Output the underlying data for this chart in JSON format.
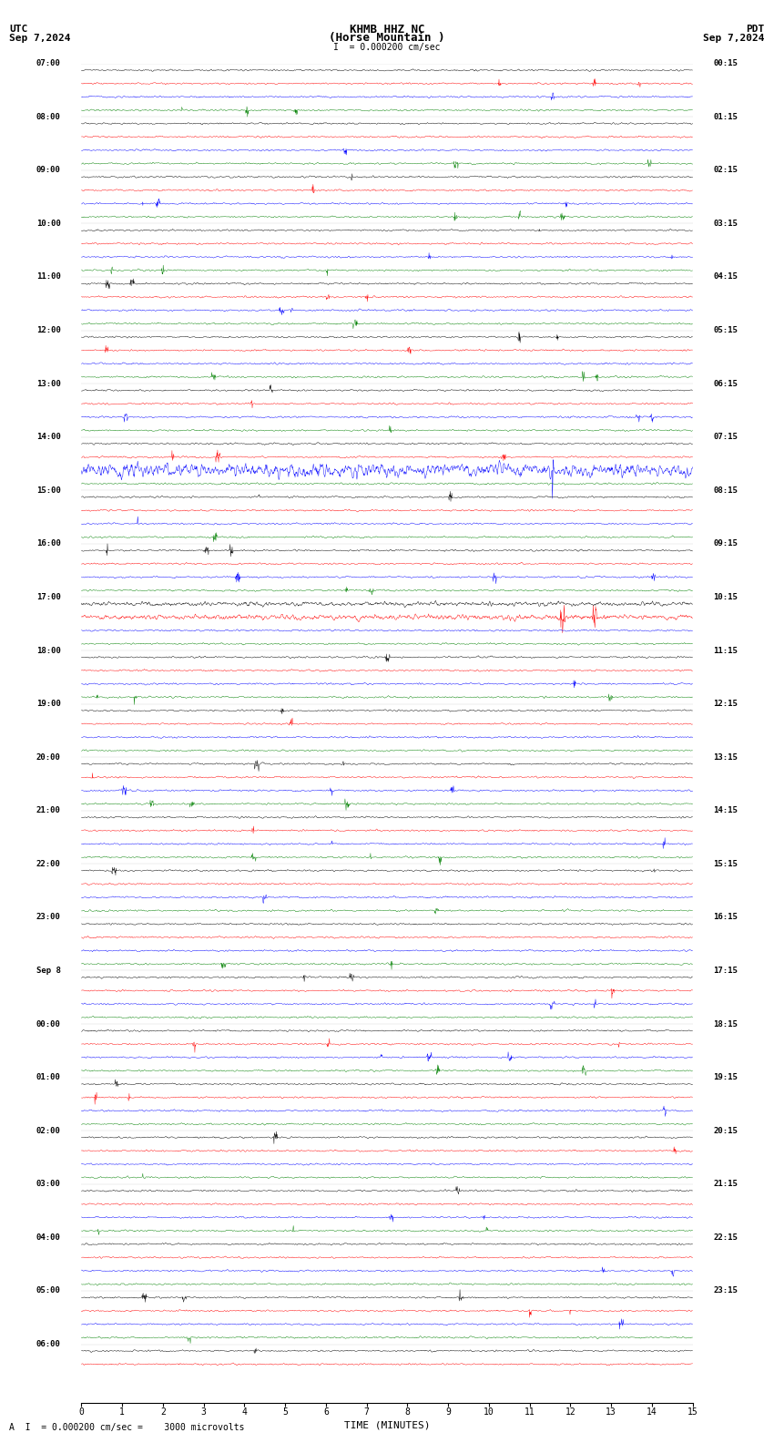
{
  "title_line1": "KHMB HHZ NC",
  "title_line2": "(Horse Mountain )",
  "scale_label": "I  = 0.000200 cm/sec",
  "utc_label": "UTC",
  "pdt_label": "PDT",
  "date_left": "Sep 7,2024",
  "date_right": "Sep 7,2024",
  "bottom_label": "TIME (MINUTES)",
  "bottom_annotation": "= 0.000200 cm/sec =    3000 microvolts",
  "bg_color": "#ffffff",
  "trace_colors": [
    "black",
    "red",
    "blue",
    "green"
  ],
  "hour_labels_left": [
    "07:00",
    "08:00",
    "09:00",
    "10:00",
    "11:00",
    "12:00",
    "13:00",
    "14:00",
    "15:00",
    "16:00",
    "17:00",
    "18:00",
    "19:00",
    "20:00",
    "21:00",
    "22:00",
    "23:00",
    "Sep 8",
    "00:00",
    "01:00",
    "02:00",
    "03:00",
    "04:00",
    "05:00",
    "06:00"
  ],
  "hour_labels_right": [
    "00:15",
    "01:15",
    "02:15",
    "03:15",
    "04:15",
    "05:15",
    "06:15",
    "07:15",
    "08:15",
    "09:15",
    "10:15",
    "11:15",
    "12:15",
    "13:15",
    "14:15",
    "15:15",
    "16:15",
    "17:15",
    "18:15",
    "19:15",
    "20:15",
    "21:15",
    "22:15",
    "23:15"
  ],
  "num_rows": 98,
  "big_event_rows": [
    27,
    28,
    29,
    30,
    31,
    32
  ],
  "big_event_color_idx": 2,
  "medium_event1_row": 40,
  "medium_event1_color_idx": 0,
  "medium_event2_row": 41,
  "medium_event2_color_idx": 1
}
